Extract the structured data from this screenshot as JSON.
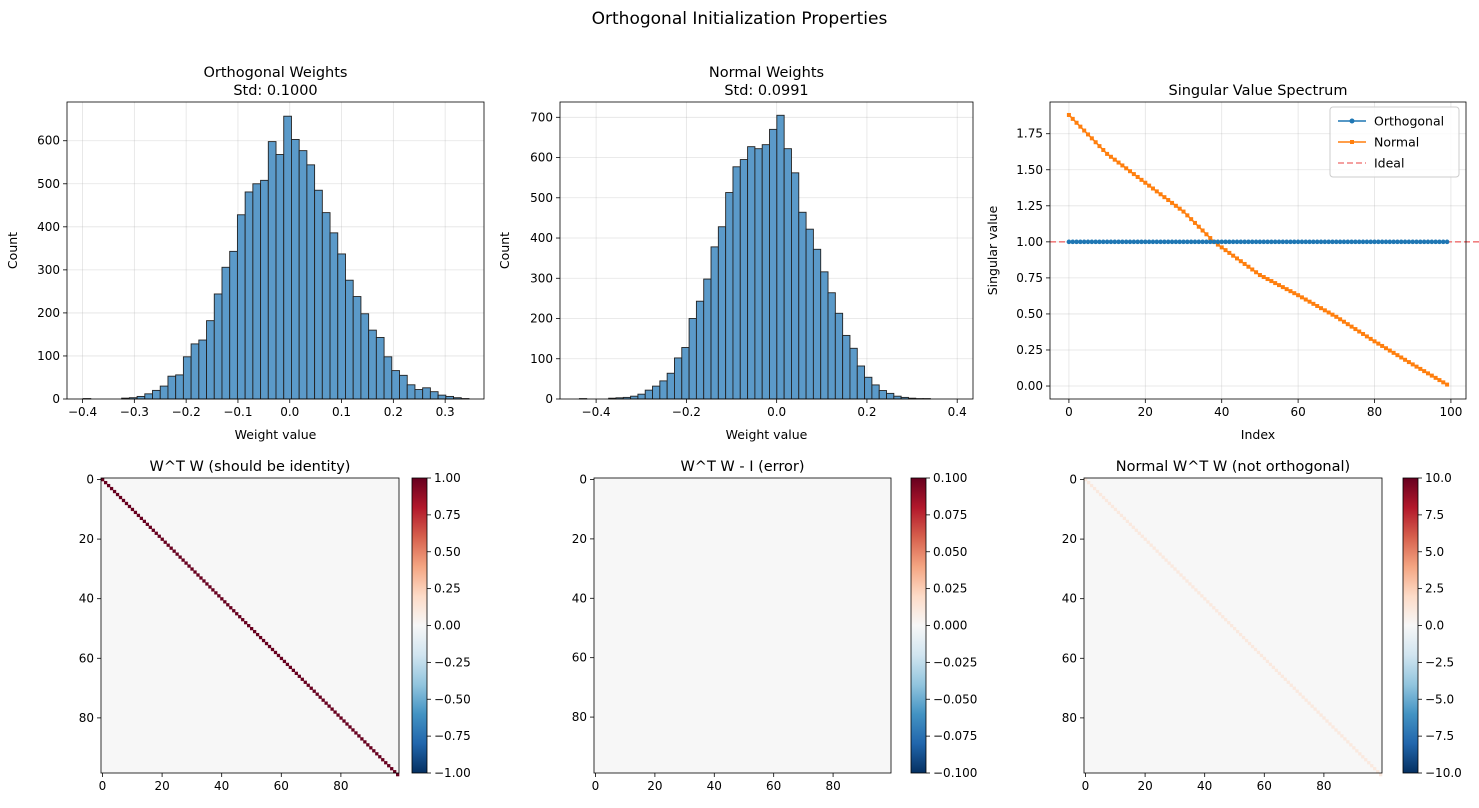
{
  "figure": {
    "title": "Orthogonal Initialization Properties"
  },
  "chart_data": [
    {
      "id": "hist_orth",
      "type": "bar",
      "title_lines": [
        "Orthogonal Weights",
        "Std: 0.1000"
      ],
      "xlabel": "Weight value",
      "ylabel": "Count",
      "xlim": [
        -0.43,
        0.375
      ],
      "ylim": [
        0,
        690
      ],
      "xticks": [
        -0.4,
        -0.3,
        -0.2,
        -0.1,
        0.0,
        0.1,
        0.2,
        0.3
      ],
      "xtick_labels": [
        "−0.4",
        "−0.3",
        "−0.2",
        "−0.1",
        "0.0",
        "0.1",
        "0.2",
        "0.3"
      ],
      "yticks": [
        0,
        100,
        200,
        300,
        400,
        500,
        600
      ],
      "ytick_labels": [
        "0",
        "100",
        "200",
        "300",
        "400",
        "500",
        "600"
      ],
      "grid": true,
      "color": "#5b9ac9",
      "bins": {
        "start": -0.399,
        "width": 0.0149,
        "counts": [
          1,
          0,
          0,
          0,
          0,
          2,
          3,
          6,
          12,
          20,
          30,
          53,
          56,
          98,
          128,
          137,
          182,
          244,
          306,
          343,
          428,
          481,
          500,
          508,
          598,
          568,
          657,
          603,
          577,
          544,
          485,
          433,
          386,
          337,
          276,
          238,
          198,
          160,
          143,
          98,
          66,
          55,
          33,
          22,
          26,
          17,
          9,
          6,
          3,
          1
        ]
      }
    },
    {
      "id": "hist_normal",
      "type": "bar",
      "title_lines": [
        "Normal Weights",
        "Std: 0.0991"
      ],
      "xlabel": "Weight value",
      "ylabel": "Count",
      "xlim": [
        -0.48,
        0.435
      ],
      "ylim": [
        0,
        738
      ],
      "xticks": [
        -0.4,
        -0.2,
        0.0,
        0.2,
        0.4
      ],
      "xtick_labels": [
        "−0.4",
        "−0.2",
        "0.0",
        "0.2",
        "0.4"
      ],
      "yticks": [
        0,
        100,
        200,
        300,
        400,
        500,
        600,
        700
      ],
      "ytick_labels": [
        "0",
        "100",
        "200",
        "300",
        "400",
        "500",
        "600",
        "700"
      ],
      "grid": true,
      "color": "#5b9ac9",
      "bins": {
        "start": -0.437,
        "width": 0.0162,
        "counts": [
          1,
          0,
          0,
          0,
          2,
          3,
          4,
          7,
          12,
          22,
          32,
          45,
          64,
          102,
          128,
          200,
          243,
          298,
          378,
          428,
          513,
          577,
          595,
          627,
          622,
          632,
          670,
          705,
          622,
          562,
          464,
          422,
          372,
          316,
          264,
          213,
          158,
          126,
          82,
          54,
          35,
          21,
          14,
          7,
          4,
          2,
          1,
          1
        ]
      }
    },
    {
      "id": "svd_spectrum",
      "type": "line",
      "title": "Singular Value Spectrum",
      "xlabel": "Index",
      "ylabel": "Singular value",
      "xlim": [
        -4.95,
        103.95
      ],
      "ylim": [
        -0.09,
        1.97
      ],
      "xticks": [
        0,
        20,
        40,
        60,
        80,
        100
      ],
      "xtick_labels": [
        "0",
        "20",
        "40",
        "60",
        "80",
        "100"
      ],
      "yticks": [
        0.0,
        0.25,
        0.5,
        0.75,
        1.0,
        1.25,
        1.5,
        1.75
      ],
      "ytick_labels": [
        "0.00",
        "0.25",
        "0.50",
        "0.75",
        "1.00",
        "1.25",
        "1.50",
        "1.75"
      ],
      "grid": true,
      "legend_position": "top-right",
      "legend": [
        "Orthogonal",
        "Normal",
        "Ideal"
      ],
      "n": 100,
      "orthogonal_value": 1.0,
      "ideal": 1.0,
      "normal_anchor_x": [
        0,
        10,
        20,
        30,
        38,
        50,
        60,
        70,
        80,
        90,
        99
      ],
      "normal_anchor_y": [
        1.88,
        1.61,
        1.41,
        1.21,
        1.0,
        0.77,
        0.63,
        0.48,
        0.31,
        0.15,
        0.01
      ],
      "colors": {
        "orthogonal": "#1f77b4",
        "normal": "#ff7f0e",
        "ideal": "#f08080"
      }
    },
    {
      "id": "heat_wtw",
      "type": "heatmap",
      "title": "W^T W (should be identity)",
      "size": 100,
      "pattern": "identity",
      "clim": [
        -1.0,
        1.0
      ],
      "xticks": [
        0,
        20,
        40,
        60,
        80
      ],
      "yticks": [
        0,
        20,
        40,
        60,
        80
      ],
      "colorbar_ticks": [
        -1.0,
        -0.75,
        -0.5,
        -0.25,
        0.0,
        0.25,
        0.5,
        0.75,
        1.0
      ],
      "colorbar_tick_labels": [
        "−1.00",
        "−0.75",
        "−0.50",
        "−0.25",
        "0.00",
        "0.25",
        "0.50",
        "0.75",
        "1.00"
      ],
      "colormap": "RdBu_r"
    },
    {
      "id": "heat_err",
      "type": "heatmap",
      "title": "W^T W - I (error)",
      "size": 100,
      "pattern": "zero",
      "clim": [
        -0.1,
        0.1
      ],
      "xticks": [
        0,
        20,
        40,
        60,
        80
      ],
      "yticks": [
        0,
        20,
        40,
        60,
        80
      ],
      "colorbar_ticks": [
        -0.1,
        -0.075,
        -0.05,
        -0.025,
        0.0,
        0.025,
        0.05,
        0.075,
        0.1
      ],
      "colorbar_tick_labels": [
        "−0.100",
        "−0.075",
        "−0.050",
        "−0.025",
        "0.000",
        "0.025",
        "0.050",
        "0.075",
        "0.100"
      ],
      "colormap": "RdBu_r"
    },
    {
      "id": "heat_normal",
      "type": "heatmap",
      "title": "Normal W^T W (not orthogonal)",
      "size": 100,
      "pattern": "faint-diagonal",
      "diagonal_value": 1.0,
      "clim": [
        -10.0,
        10.0
      ],
      "xticks": [
        0,
        20,
        40,
        60,
        80
      ],
      "yticks": [
        0,
        20,
        40,
        60,
        80
      ],
      "colorbar_ticks": [
        -10.0,
        -7.5,
        -5.0,
        -2.5,
        0.0,
        2.5,
        5.0,
        7.5,
        10.0
      ],
      "colorbar_tick_labels": [
        "−10.0",
        "−7.5",
        "−5.0",
        "−2.5",
        "0.0",
        "2.5",
        "5.0",
        "7.5",
        "10.0"
      ],
      "colormap": "RdBu_r"
    }
  ]
}
